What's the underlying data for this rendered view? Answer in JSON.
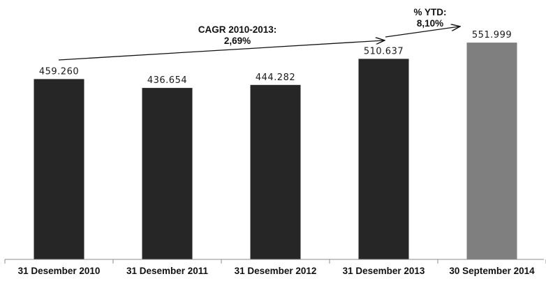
{
  "chart_data": {
    "type": "bar",
    "categories": [
      "31 Desember 2010",
      "31 Desember 2011",
      "31 Desember 2012",
      "31 Desember 2013",
      "30 September 2014"
    ],
    "values": [
      459260,
      436654,
      444282,
      510637,
      551999
    ],
    "value_labels": [
      "459.260",
      "436.654",
      "444.282",
      "510.637",
      "551.999"
    ],
    "bar_colors": [
      "#262626",
      "#262626",
      "#262626",
      "#262626",
      "#7f7f7f"
    ],
    "title": "",
    "xlabel": "",
    "ylabel": "",
    "ylim": [
      0,
      554000
    ],
    "grid": false,
    "legend": "none",
    "annotations": [
      {
        "name": "cagr",
        "lines": [
          "CAGR 2010-2013:",
          "2,69%"
        ]
      },
      {
        "name": "ytd",
        "lines": [
          "% YTD:",
          "8,10%"
        ]
      }
    ]
  }
}
